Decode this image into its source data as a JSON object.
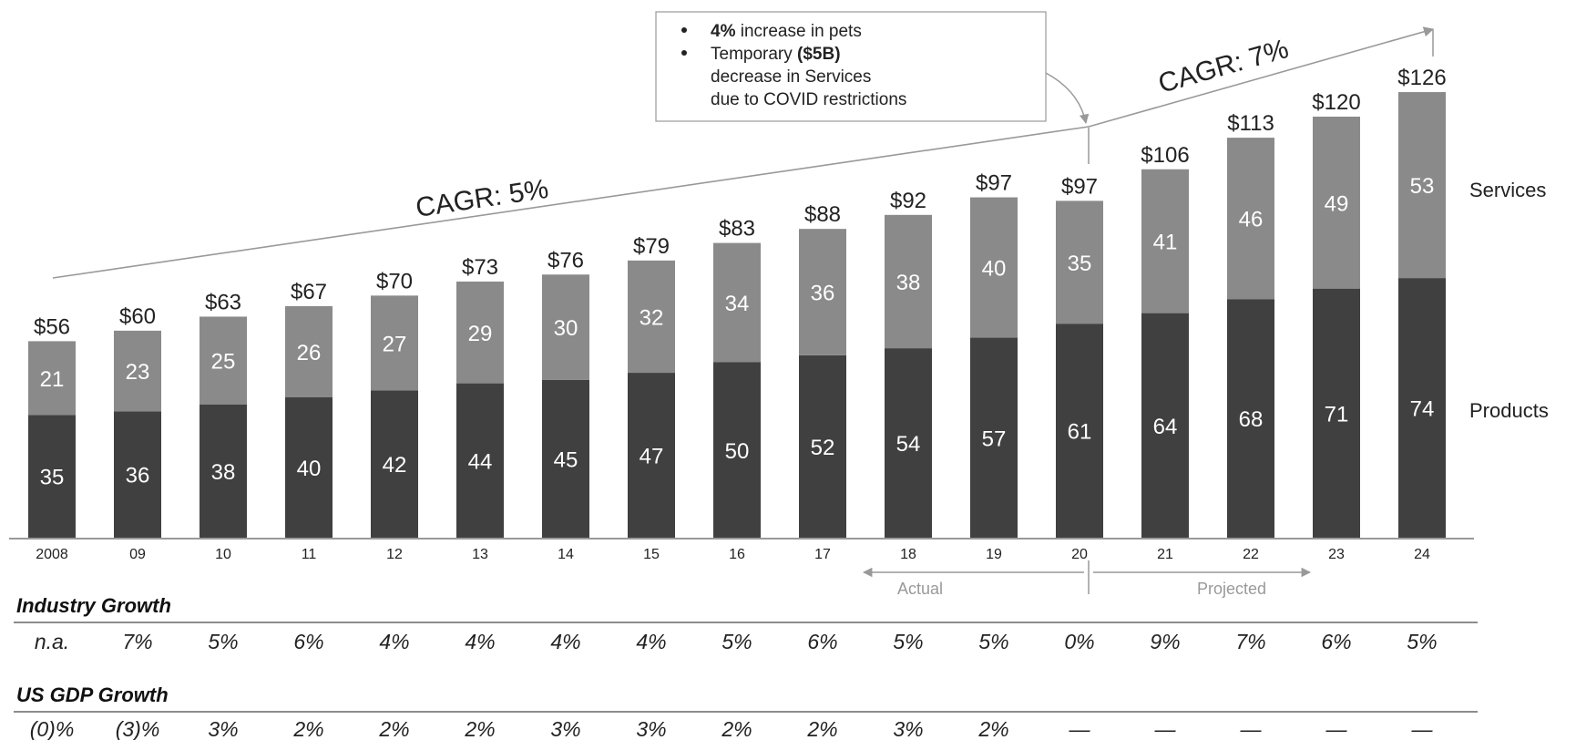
{
  "chart_data": {
    "type": "bar",
    "stacked": true,
    "categories": [
      "2008",
      "09",
      "10",
      "11",
      "12",
      "13",
      "14",
      "15",
      "16",
      "17",
      "18",
      "19",
      "20",
      "21",
      "22",
      "23",
      "24"
    ],
    "series": [
      {
        "name": "Products",
        "values": [
          35,
          36,
          38,
          40,
          42,
          44,
          45,
          47,
          50,
          52,
          54,
          57,
          61,
          64,
          68,
          71,
          74
        ],
        "color": "#404040"
      },
      {
        "name": "Services",
        "values": [
          21,
          23,
          25,
          26,
          27,
          29,
          30,
          32,
          34,
          36,
          38,
          40,
          35,
          41,
          46,
          49,
          53
        ],
        "color": "#8a8a8a"
      }
    ],
    "totals": [
      "$56",
      "$60",
      "$63",
      "$67",
      "$70",
      "$73",
      "$76",
      "$79",
      "$83",
      "$88",
      "$92",
      "$97",
      "$97",
      "$106",
      "$113",
      "$120",
      "$126"
    ],
    "ylim": [
      0,
      126
    ],
    "grid": false,
    "legend": "right",
    "annotations": {
      "cagr_left": "CAGR: 5%",
      "cagr_right": "CAGR: 7%",
      "actual_label": "Actual",
      "projected_label": "Projected",
      "note_bullets": [
        {
          "bold": "4%",
          "text": " increase in pets"
        },
        {
          "prefix": "Temporary ",
          "bold": "($5B)",
          "text": ""
        },
        {
          "text": "decrease in Services"
        },
        {
          "text": "due to COVID restrictions"
        }
      ]
    }
  },
  "industry_growth": {
    "title": "Industry Growth",
    "values": [
      "n.a.",
      "7%",
      "5%",
      "6%",
      "4%",
      "4%",
      "4%",
      "4%",
      "5%",
      "6%",
      "5%",
      "5%",
      "0%",
      "9%",
      "7%",
      "6%",
      "5%"
    ]
  },
  "gdp_growth": {
    "title": "US GDP Growth",
    "values": [
      "(0)%",
      "(3)%",
      "3%",
      "2%",
      "2%",
      "2%",
      "3%",
      "3%",
      "2%",
      "2%",
      "3%",
      "2%",
      "—",
      "—",
      "—",
      "—",
      "—"
    ]
  }
}
